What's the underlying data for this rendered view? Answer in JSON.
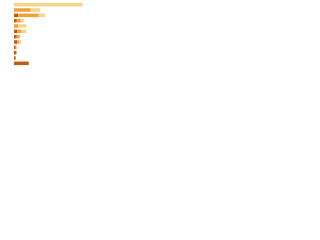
{
  "chart_data": {
    "type": "stacked-bar-horizontal",
    "categories": [
      null,
      null,
      null,
      null,
      null,
      null,
      null,
      null,
      null,
      null,
      null,
      null
    ],
    "series": [
      {
        "color": "#c55a11",
        "values": [
          0,
          0,
          5,
          3,
          0,
          4,
          3,
          4,
          2,
          3,
          2,
          18
        ]
      },
      {
        "color": "#eea23a",
        "values": [
          0,
          20,
          25,
          5,
          5,
          5,
          4,
          2,
          0,
          0,
          0,
          0
        ]
      },
      {
        "color": "#f8d48a",
        "values": [
          84,
          12,
          8,
          4,
          10,
          6,
          0,
          3,
          2,
          0,
          0,
          0
        ]
      }
    ],
    "xlim": [
      0,
      100
    ]
  }
}
